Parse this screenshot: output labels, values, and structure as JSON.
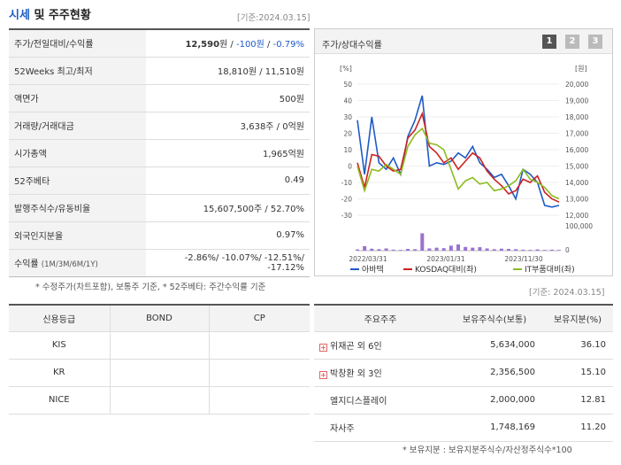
{
  "header": {
    "title_accent": "시세",
    "title_rest": " 및 주주현황",
    "date": "[기준:2024.03.15]"
  },
  "info_rows": [
    {
      "label": "주가/전일대비/수익률",
      "price": "12,590",
      "unit": "원",
      "sep1": " / ",
      "change": "-100원",
      "sep2": " / ",
      "rate": "-0.79%"
    },
    {
      "label": "52Weeks 최고/최저",
      "value": "18,810원 / 11,510원"
    },
    {
      "label": "액면가",
      "value": "500원"
    },
    {
      "label": "거래량/거래대금",
      "value": "3,638주 / 0억원"
    },
    {
      "label": "시가총액",
      "value": "1,965억원"
    },
    {
      "label": "52주베타",
      "value": "0.49"
    },
    {
      "label": "발행주식수/유동비율",
      "value": "15,607,500주 / 52.70%"
    },
    {
      "label": "외국인지분율",
      "value": "0.97%"
    },
    {
      "label": "수익률",
      "label_sub": "(1M/3M/6M/1Y)",
      "value": "-2.86%/ -10.07%/ -12.51%/ -17.12%"
    }
  ],
  "chart_panel": {
    "title": "주가/상대수익률",
    "pages": [
      "1",
      "2",
      "3"
    ]
  },
  "chart_data": {
    "type": "line",
    "left_unit": "[%]",
    "right_unit": "[원]",
    "left_ticks": [
      "50",
      "40",
      "30",
      "20",
      "10",
      "0",
      "-10",
      "-20",
      "-30"
    ],
    "right_ticks": [
      "20,000",
      "19,000",
      "18,000",
      "17,000",
      "16,000",
      "15,000",
      "14,000",
      "13,000",
      "12,000"
    ],
    "volume_ticks": [
      "100,000",
      "0"
    ],
    "x_labels": [
      "2022/03/31",
      "2023/01/31",
      "2023/11/30"
    ],
    "ylim_left": [
      -30,
      50
    ],
    "series": [
      {
        "name": "아바텍",
        "color": "#1e5bc6",
        "values": [
          28,
          -5,
          30,
          2,
          -2,
          5,
          -5,
          18,
          28,
          43,
          0,
          2,
          1,
          3,
          8,
          5,
          12,
          2,
          -2,
          -7,
          -5,
          -12,
          -20,
          -2,
          -5,
          -10,
          -24,
          -25,
          -24
        ]
      },
      {
        "name": "KOSDAQ대비(좌)",
        "color": "#cc2222",
        "values": [
          2,
          -13,
          7,
          6,
          0,
          -3,
          -2,
          17,
          22,
          32,
          12,
          8,
          2,
          5,
          -2,
          3,
          8,
          5,
          -3,
          -8,
          -12,
          -17,
          -15,
          -8,
          -10,
          -6,
          -16,
          -20,
          -22
        ]
      },
      {
        "name": "IT부품대비(좌)",
        "color": "#8dbb1f",
        "values": [
          0,
          -15,
          -2,
          -3,
          1,
          -2,
          -5,
          12,
          19,
          23,
          14,
          13,
          10,
          -2,
          -14,
          -9,
          -7,
          -11,
          -10,
          -15,
          -14,
          -12,
          -9,
          -2,
          -8,
          -10,
          -13,
          -18,
          -20
        ]
      }
    ],
    "volume_label": "거래량",
    "volume_color": "#9b72cf",
    "volume_values": [
      5,
      18,
      8,
      6,
      9,
      4,
      3,
      7,
      6,
      70,
      9,
      12,
      10,
      20,
      25,
      15,
      12,
      14,
      9,
      6,
      8,
      7,
      6,
      4,
      3,
      5,
      3,
      4,
      3
    ]
  },
  "notes": {
    "chart_note": "* 수정주가(차트포함), 보통주 기준, * 52주베타: 주간수익률 기준",
    "share_date": "[기준: 2024.03.15]",
    "share_note": "* 보유지분 : 보유지분주식수/자산정주식수*100"
  },
  "credit": {
    "headers": [
      "신용등급",
      "BOND",
      "CP"
    ],
    "rows": [
      {
        "name": "KIS",
        "bond": "",
        "cp": ""
      },
      {
        "name": "KR",
        "bond": "",
        "cp": ""
      },
      {
        "name": "NICE",
        "bond": "",
        "cp": ""
      }
    ]
  },
  "shareholders": {
    "headers": [
      "주요주주",
      "보유주식수(보통)",
      "보유지분(%)"
    ],
    "rows": [
      {
        "name": "위재곤 외 6인",
        "expand": "+",
        "shares": "5,634,000",
        "pct": "36.10"
      },
      {
        "name": "박창환 외 3인",
        "expand": "+",
        "shares": "2,356,500",
        "pct": "15.10"
      },
      {
        "name": "엘지디스플레이",
        "shares": "2,000,000",
        "pct": "12.81"
      },
      {
        "name": "자사주",
        "shares": "1,748,169",
        "pct": "11.20"
      }
    ]
  }
}
